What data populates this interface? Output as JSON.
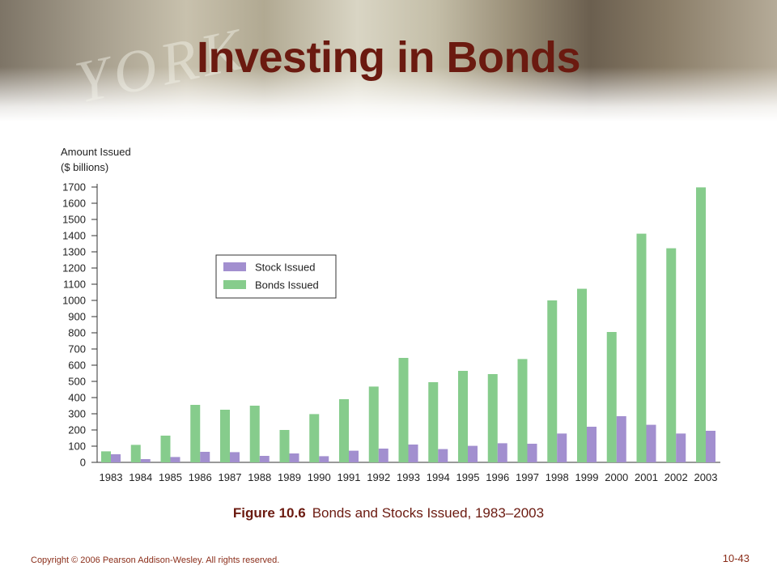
{
  "slide": {
    "title": "Investing in Bonds",
    "banner_text": "YORK",
    "caption_figure": "Figure 10.6",
    "caption_text": "Bonds and Stocks Issued, 1983–2003",
    "copyright": "Copyright © 2006 Pearson Addison-Wesley. All rights reserved.",
    "page_number": "10-43"
  },
  "chart_data": {
    "type": "bar",
    "ylabel_line1": "Amount Issued",
    "ylabel_line2": "($ billions)",
    "ylim": [
      0,
      1700
    ],
    "yticks": [
      0,
      100,
      200,
      300,
      400,
      500,
      600,
      700,
      800,
      900,
      1000,
      1100,
      1200,
      1300,
      1400,
      1500,
      1600,
      1700
    ],
    "categories": [
      "1983",
      "1984",
      "1985",
      "1986",
      "1987",
      "1988",
      "1989",
      "1990",
      "1991",
      "1992",
      "1993",
      "1994",
      "1995",
      "1996",
      "1997",
      "1998",
      "1999",
      "2000",
      "2001",
      "2002",
      "2003"
    ],
    "series": [
      {
        "name": "Bonds Issued",
        "color": "#86cc8c",
        "values": [
          68,
          108,
          165,
          355,
          325,
          350,
          200,
          298,
          390,
          468,
          645,
          495,
          565,
          545,
          638,
          1000,
          1072,
          805,
          1412,
          1322,
          1698
        ]
      },
      {
        "name": "Stock Issued",
        "color": "#a28fcf",
        "values": [
          50,
          20,
          33,
          65,
          63,
          40,
          55,
          38,
          72,
          85,
          110,
          82,
          102,
          118,
          115,
          178,
          220,
          285,
          232,
          178,
          195
        ]
      }
    ],
    "legend_order": [
      "Stock Issued",
      "Bonds Issued"
    ],
    "legend_position": "upper-left"
  }
}
